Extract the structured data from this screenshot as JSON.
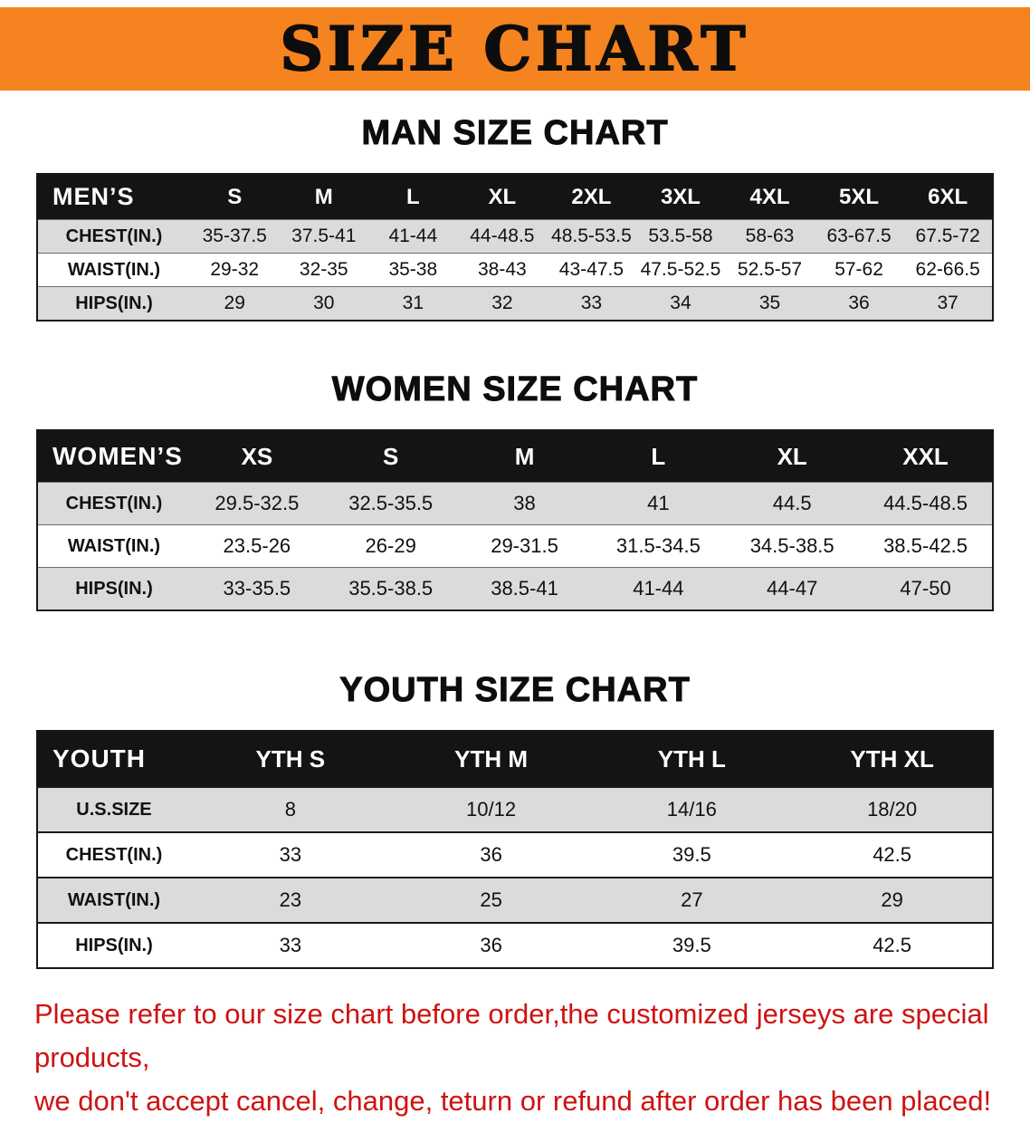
{
  "colors": {
    "banner_bg": "#F5831F",
    "table_header_bg": "#141414",
    "row_gray": "#DBDBDB",
    "disclaimer_red": "#CE1312"
  },
  "banner": {
    "title": "SIZE CHART"
  },
  "men": {
    "heading": "MAN SIZE CHART",
    "header_label": "MEN’S",
    "columns": [
      "S",
      "M",
      "L",
      "XL",
      "2XL",
      "3XL",
      "4XL",
      "5XL",
      "6XL"
    ],
    "rows": [
      {
        "label": "CHEST(IN.)",
        "values": [
          "35-37.5",
          "37.5-41",
          "41-44",
          "44-48.5",
          "48.5-53.5",
          "53.5-58",
          "58-63",
          "63-67.5",
          "67.5-72"
        ]
      },
      {
        "label": "WAIST(IN.)",
        "values": [
          "29-32",
          "32-35",
          "35-38",
          "38-43",
          "43-47.5",
          "47.5-52.5",
          "52.5-57",
          "57-62",
          "62-66.5"
        ]
      },
      {
        "label": "HIPS(IN.)",
        "values": [
          "29",
          "30",
          "31",
          "32",
          "33",
          "34",
          "35",
          "36",
          "37"
        ]
      }
    ]
  },
  "women": {
    "heading": "WOMEN SIZE CHART",
    "header_label": "WOMEN’S",
    "columns": [
      "XS",
      "S",
      "M",
      "L",
      "XL",
      "XXL"
    ],
    "rows": [
      {
        "label": "CHEST(IN.)",
        "values": [
          "29.5-32.5",
          "32.5-35.5",
          "38",
          "41",
          "44.5",
          "44.5-48.5"
        ]
      },
      {
        "label": "WAIST(IN.)",
        "values": [
          "23.5-26",
          "26-29",
          "29-31.5",
          "31.5-34.5",
          "34.5-38.5",
          "38.5-42.5"
        ]
      },
      {
        "label": "HIPS(IN.)",
        "values": [
          "33-35.5",
          "35.5-38.5",
          "38.5-41",
          "41-44",
          "44-47",
          "47-50"
        ]
      }
    ]
  },
  "youth": {
    "heading": "YOUTH SIZE CHART",
    "header_label": "YOUTH",
    "columns": [
      "YTH S",
      "YTH M",
      "YTH L",
      "YTH XL"
    ],
    "rows": [
      {
        "label": "U.S.SIZE",
        "values": [
          "8",
          "10/12",
          "14/16",
          "18/20"
        ]
      },
      {
        "label": "CHEST(IN.)",
        "values": [
          "33",
          "36",
          "39.5",
          "42.5"
        ]
      },
      {
        "label": "WAIST(IN.)",
        "values": [
          "23",
          "25",
          "27",
          "29"
        ]
      },
      {
        "label": "HIPS(IN.)",
        "values": [
          "33",
          "36",
          "39.5",
          "42.5"
        ]
      }
    ]
  },
  "disclaimer": {
    "line1": "Please refer to our size chart before order,the customized jerseys are special products,",
    "line2": "we don't accept cancel, change, teturn or refund after order has been placed!"
  }
}
